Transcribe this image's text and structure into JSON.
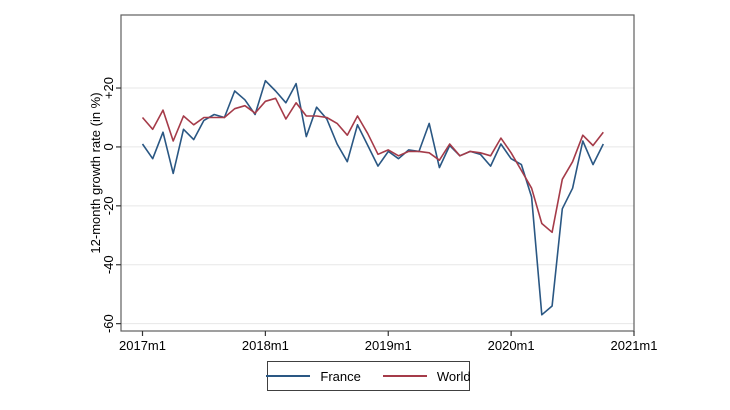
{
  "figure": {
    "background": "#ffffff",
    "border_color": "#5f5f5f",
    "gridline_color": "#e7e7e7",
    "tick_color": "#333333",
    "text_color": "#000000"
  },
  "chart_data": {
    "type": "line",
    "title": "",
    "xlabel": "",
    "ylabel": "12-month growth rate (in %)",
    "grid": "horizontal",
    "legend_position": "bottom-center",
    "x_start": "2017m1",
    "x_end": "2020m10",
    "x_ticks": [
      {
        "label": "2017m1",
        "month_index": 0
      },
      {
        "label": "2018m1",
        "month_index": 12
      },
      {
        "label": "2019m1",
        "month_index": 24
      },
      {
        "label": "2020m1",
        "month_index": 36
      },
      {
        "label": "2021m1",
        "month_index": 48
      }
    ],
    "y_ticks": [
      {
        "label": "+20",
        "value": 20
      },
      {
        "label": "0",
        "value": 0
      },
      {
        "label": "-20",
        "value": -20
      },
      {
        "label": "-40",
        "value": -40
      },
      {
        "label": "-60",
        "value": -60
      }
    ],
    "xlim_month_index": [
      -2.1,
      48
    ],
    "ylim": [
      -62.5,
      44.8
    ],
    "series": [
      {
        "name": "France",
        "color": "#2a5783",
        "values": [
          1,
          -4,
          5,
          -9,
          6,
          2.5,
          9,
          11,
          10,
          19,
          16,
          11,
          22.5,
          19,
          15,
          21.5,
          3.5,
          13.5,
          9.5,
          1,
          -5,
          7.5,
          0.5,
          -6.5,
          -1.5,
          -4,
          -1,
          -1.5,
          8,
          -7,
          0.5,
          -3,
          -1.5,
          -2.5,
          -6.5,
          1,
          -4,
          -6,
          -17,
          -57,
          -54,
          -21,
          -14,
          2,
          -6,
          1
        ]
      },
      {
        "name": "World",
        "color": "#a53b49",
        "values": [
          10,
          6,
          12.5,
          2,
          10.5,
          7.5,
          10,
          10,
          10,
          13,
          14,
          11.5,
          15.5,
          16.5,
          9.5,
          15,
          10.5,
          10.5,
          10,
          8,
          4,
          10.5,
          4.5,
          -2.5,
          -1,
          -3,
          -1.5,
          -1.5,
          -2,
          -4.5,
          1,
          -3,
          -1.5,
          -2,
          -3,
          3,
          -2,
          -8,
          -14,
          -26,
          -29,
          -11,
          -5,
          4,
          0.5,
          5
        ]
      }
    ]
  },
  "legend": {
    "entries": [
      {
        "label": "France"
      },
      {
        "label": "World"
      }
    ]
  }
}
